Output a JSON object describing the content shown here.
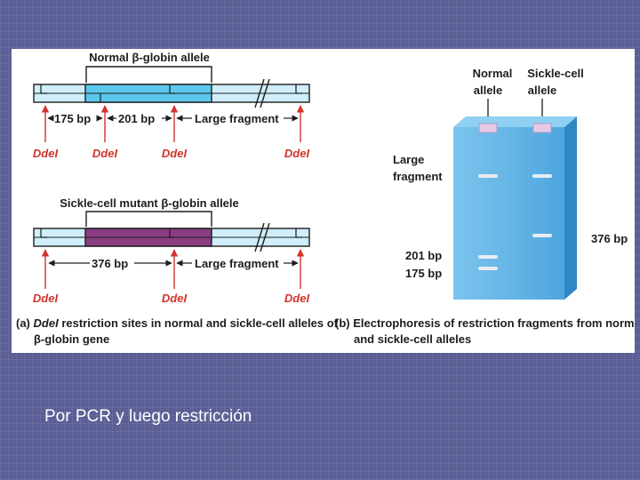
{
  "panel_a": {
    "normal_title": "Normal β-globin allele",
    "normal_labels": {
      "seg1": "175 bp",
      "seg2": "201 bp",
      "seg3": "Large fragment"
    },
    "mutant_title": "Sickle-cell mutant β-globin allele",
    "mutant_labels": {
      "seg1": "376 bp",
      "seg2": "Large fragment"
    },
    "site_label": "DdeI",
    "caption_letter": "(a)",
    "caption_enzyme": "DdeI",
    "caption_rest": "restriction sites in normal and sickle-cell alleles of",
    "caption_line2": "β-globin gene"
  },
  "panel_b": {
    "lane1_line1": "Normal",
    "lane1_line2": "allele",
    "lane2_line1": "Sickle-cell",
    "lane2_line2": "allele",
    "large_line1": "Large",
    "large_line2": "fragment",
    "label_376": "376 bp",
    "label_201": "201 bp",
    "label_175": "175 bp",
    "caption_line1": "(b) Electrophoresis of restriction fragments from normal",
    "caption_line2": "and sickle-cell alleles"
  },
  "colors": {
    "strand": "#cfeefa",
    "highlight": "#5bc8ec",
    "mutant": "#8a3d82",
    "gel": "#5db0e3",
    "band": "#e8ecf4",
    "site": "#d0342c"
  },
  "slide_caption": "Por PCR y luego restricción"
}
